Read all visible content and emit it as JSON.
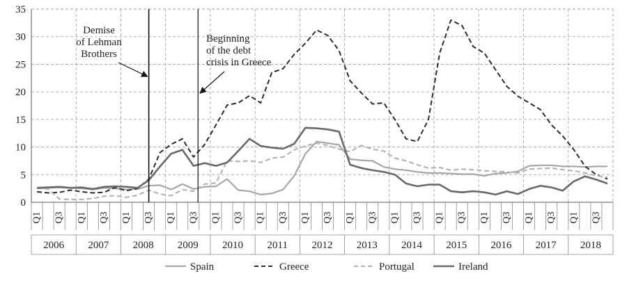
{
  "chart_data": {
    "type": "line",
    "title": "",
    "xlabel": "",
    "ylabel": "",
    "ylim": [
      0,
      35
    ],
    "yticks": [
      0,
      5,
      10,
      15,
      20,
      25,
      30,
      35
    ],
    "grid": true,
    "legend_position": "bottom-center",
    "years": [
      "2006",
      "2007",
      "2008",
      "2009",
      "2010",
      "2011",
      "2012",
      "2013",
      "2014",
      "2015",
      "2016",
      "2017",
      "2018"
    ],
    "quarter_tick_labels": [
      "Q1",
      "Q3"
    ],
    "x": [
      "2006Q1",
      "2006Q2",
      "2006Q3",
      "2006Q4",
      "2007Q1",
      "2007Q2",
      "2007Q3",
      "2007Q4",
      "2008Q1",
      "2008Q2",
      "2008Q3",
      "2008Q4",
      "2009Q1",
      "2009Q2",
      "2009Q3",
      "2009Q4",
      "2010Q1",
      "2010Q2",
      "2010Q3",
      "2010Q4",
      "2011Q1",
      "2011Q2",
      "2011Q3",
      "2011Q4",
      "2012Q1",
      "2012Q2",
      "2012Q3",
      "2012Q4",
      "2013Q1",
      "2013Q2",
      "2013Q3",
      "2013Q4",
      "2014Q1",
      "2014Q2",
      "2014Q3",
      "2014Q4",
      "2015Q1",
      "2015Q2",
      "2015Q3",
      "2015Q4",
      "2016Q1",
      "2016Q2",
      "2016Q3",
      "2016Q4",
      "2017Q1",
      "2017Q2",
      "2017Q3",
      "2017Q4",
      "2018Q1",
      "2018Q2",
      "2018Q3",
      "2018Q4"
    ],
    "series": [
      {
        "name": "Spain",
        "style": "solid",
        "color": "#a6a6a6",
        "values": [
          2.5,
          2.6,
          2.7,
          2.6,
          2.5,
          2.3,
          2.6,
          2.5,
          2.3,
          2.4,
          3.0,
          3.1,
          2.3,
          3.3,
          2.4,
          2.8,
          2.9,
          4.2,
          2.2,
          2.0,
          1.4,
          1.6,
          2.3,
          4.8,
          8.8,
          11.0,
          10.7,
          10.4,
          7.8,
          7.6,
          7.5,
          6.4,
          6.0,
          5.8,
          5.5,
          5.3,
          5.3,
          5.2,
          5.1,
          5.1,
          4.8,
          5.2,
          5.3,
          5.6,
          6.6,
          6.7,
          6.7,
          6.5,
          6.5,
          6.4,
          6.5,
          6.5
        ]
      },
      {
        "name": "Greece",
        "style": "dash",
        "color": "#2b2b2b",
        "values": [
          1.9,
          1.7,
          1.8,
          2.2,
          1.9,
          1.7,
          1.8,
          2.7,
          2.1,
          2.5,
          4.2,
          9.0,
          10.5,
          11.5,
          8.2,
          10.5,
          14.0,
          17.6,
          18.0,
          19.3,
          18.0,
          23.5,
          24.2,
          26.8,
          28.8,
          31.2,
          30.2,
          27.5,
          22.0,
          19.8,
          17.8,
          18.0,
          15.0,
          11.5,
          11.0,
          15.0,
          27.0,
          33.0,
          32.0,
          28.2,
          27.0,
          24.0,
          21.0,
          19.2,
          18.0,
          16.8,
          14.0,
          12.0,
          9.5,
          6.5,
          5.0,
          4.2
        ]
      },
      {
        "name": "Portugal",
        "style": "dash",
        "color": "#b4b4b4",
        "values": [
          2.6,
          2.4,
          0.6,
          0.5,
          0.5,
          0.7,
          1.1,
          1.2,
          0.9,
          1.3,
          2.2,
          1.5,
          1.2,
          2.3,
          2.0,
          3.3,
          3.5,
          7.5,
          7.4,
          7.5,
          7.2,
          8.0,
          8.2,
          9.5,
          10.2,
          10.7,
          10.3,
          9.6,
          9.2,
          10.3,
          9.6,
          9.3,
          8.0,
          7.5,
          6.8,
          6.2,
          6.3,
          5.8,
          6.0,
          5.9,
          5.7,
          5.6,
          5.5,
          5.3,
          6.0,
          6.1,
          6.2,
          5.9,
          5.7,
          5.3,
          4.8,
          4.5
        ]
      },
      {
        "name": "Ireland",
        "style": "solid",
        "color": "#686868",
        "values": [
          2.6,
          2.7,
          2.8,
          2.6,
          2.7,
          2.4,
          2.8,
          2.9,
          2.8,
          2.6,
          4.0,
          6.5,
          8.8,
          9.5,
          6.6,
          7.1,
          6.6,
          7.2,
          9.3,
          11.5,
          10.2,
          9.9,
          9.7,
          10.6,
          13.5,
          13.4,
          13.2,
          12.8,
          6.8,
          6.2,
          5.8,
          5.5,
          5.0,
          3.4,
          2.9,
          3.2,
          3.2,
          2.0,
          1.8,
          2.0,
          1.8,
          1.4,
          2.0,
          1.5,
          2.4,
          3.0,
          2.7,
          2.1,
          3.8,
          4.7,
          4.1,
          3.4
        ]
      }
    ],
    "annotations": [
      {
        "lines": [
          "Demise",
          "of Lehman",
          "Brothers"
        ],
        "at_x": "2008Q3"
      },
      {
        "lines": [
          "Beginning",
          "of the debt",
          "crisis in Greece"
        ],
        "at_x": "2009Q4"
      }
    ]
  }
}
